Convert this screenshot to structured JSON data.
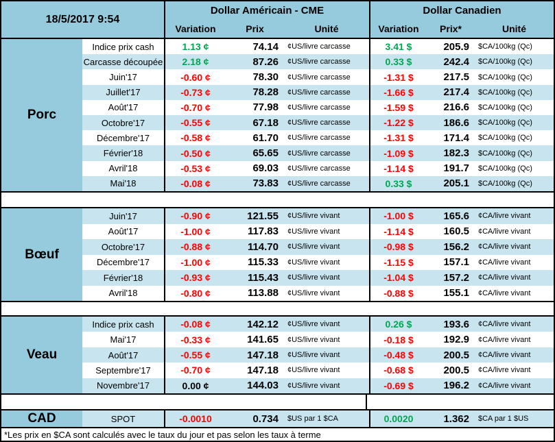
{
  "header": {
    "datetime": "18/5/2017 9:54",
    "usd_group": {
      "title": "Dollar Américain - CME",
      "cols": [
        "Variation",
        "Prix",
        "Unité"
      ]
    },
    "cad_group": {
      "title": "Dollar Canadien",
      "cols": [
        "Variation",
        "Prix*",
        "Unité"
      ]
    }
  },
  "colors": {
    "header_blue": "#95cbdc",
    "stripe_blue": "#c7e4ef",
    "positive_green": "#00a651",
    "negative_red": "#ff0000",
    "neutral_black": "#000000"
  },
  "sections": [
    {
      "name": "Porc",
      "stripe_start": "white",
      "rows": [
        {
          "label": "Indice prix cash",
          "us_var": "1.13 ¢",
          "us_dir": "pos",
          "us_prix": "74.14",
          "us_unit": "¢US/livre carcasse",
          "ca_var": "3.41 $",
          "ca_dir": "pos",
          "ca_prix": "205.9",
          "ca_unit": "$CA/100kg (Qc)"
        },
        {
          "label": "Carcasse découpée",
          "us_var": "2.18 ¢",
          "us_dir": "pos",
          "us_prix": "87.26",
          "us_unit": "¢US/livre carcasse",
          "ca_var": "0.33 $",
          "ca_dir": "pos",
          "ca_prix": "242.4",
          "ca_unit": "$CA/100kg (Qc)"
        },
        {
          "label": "Juin'17",
          "us_var": "-0.60 ¢",
          "us_dir": "neg",
          "us_prix": "78.30",
          "us_unit": "¢US/livre carcasse",
          "ca_var": "-1.31 $",
          "ca_dir": "neg",
          "ca_prix": "217.5",
          "ca_unit": "$CA/100kg (Qc)"
        },
        {
          "label": "Juillet'17",
          "us_var": "-0.73 ¢",
          "us_dir": "neg",
          "us_prix": "78.28",
          "us_unit": "¢US/livre carcasse",
          "ca_var": "-1.66 $",
          "ca_dir": "neg",
          "ca_prix": "217.4",
          "ca_unit": "$CA/100kg (Qc)"
        },
        {
          "label": "Août'17",
          "us_var": "-0.70 ¢",
          "us_dir": "neg",
          "us_prix": "77.98",
          "us_unit": "¢US/livre carcasse",
          "ca_var": "-1.59 $",
          "ca_dir": "neg",
          "ca_prix": "216.6",
          "ca_unit": "$CA/100kg (Qc)"
        },
        {
          "label": "Octobre'17",
          "us_var": "-0.55 ¢",
          "us_dir": "neg",
          "us_prix": "67.18",
          "us_unit": "¢US/livre carcasse",
          "ca_var": "-1.22 $",
          "ca_dir": "neg",
          "ca_prix": "186.6",
          "ca_unit": "$CA/100kg (Qc)"
        },
        {
          "label": "Décembre'17",
          "us_var": "-0.58 ¢",
          "us_dir": "neg",
          "us_prix": "61.70",
          "us_unit": "¢US/livre carcasse",
          "ca_var": "-1.31 $",
          "ca_dir": "neg",
          "ca_prix": "171.4",
          "ca_unit": "$CA/100kg (Qc)"
        },
        {
          "label": "Février'18",
          "us_var": "-0.50 ¢",
          "us_dir": "neg",
          "us_prix": "65.65",
          "us_unit": "¢US/livre carcasse",
          "ca_var": "-1.09 $",
          "ca_dir": "neg",
          "ca_prix": "182.3",
          "ca_unit": "$CA/100kg (Qc)"
        },
        {
          "label": "Avril'18",
          "us_var": "-0.53 ¢",
          "us_dir": "neg",
          "us_prix": "69.03",
          "us_unit": "¢US/livre carcasse",
          "ca_var": "-1.14 $",
          "ca_dir": "neg",
          "ca_prix": "191.7",
          "ca_unit": "$CA/100kg (Qc)"
        },
        {
          "label": "Mai'18",
          "us_var": "-0.08 ¢",
          "us_dir": "neg",
          "us_prix": "73.83",
          "us_unit": "¢US/livre carcasse",
          "ca_var": "0.33 $",
          "ca_dir": "pos",
          "ca_prix": "205.1",
          "ca_unit": "$CA/100kg (Qc)"
        }
      ]
    },
    {
      "name": "Bœuf",
      "stripe_start": "blue",
      "rows": [
        {
          "label": "Juin'17",
          "us_var": "-0.90 ¢",
          "us_dir": "neg",
          "us_prix": "121.55",
          "us_unit": "¢US/livre vivant",
          "ca_var": "-1.00 $",
          "ca_dir": "neg",
          "ca_prix": "165.6",
          "ca_unit": "¢CA/livre vivant"
        },
        {
          "label": "Août'17",
          "us_var": "-1.00 ¢",
          "us_dir": "neg",
          "us_prix": "117.83",
          "us_unit": "¢US/livre vivant",
          "ca_var": "-1.14 $",
          "ca_dir": "neg",
          "ca_prix": "160.5",
          "ca_unit": "¢CA/livre vivant"
        },
        {
          "label": "Octobre'17",
          "us_var": "-0.88 ¢",
          "us_dir": "neg",
          "us_prix": "114.70",
          "us_unit": "¢US/livre vivant",
          "ca_var": "-0.98 $",
          "ca_dir": "neg",
          "ca_prix": "156.2",
          "ca_unit": "¢CA/livre vivant"
        },
        {
          "label": "Décembre'17",
          "us_var": "-1.00 ¢",
          "us_dir": "neg",
          "us_prix": "115.33",
          "us_unit": "¢US/livre vivant",
          "ca_var": "-1.15 $",
          "ca_dir": "neg",
          "ca_prix": "157.1",
          "ca_unit": "¢CA/livre vivant"
        },
        {
          "label": "Février'18",
          "us_var": "-0.93 ¢",
          "us_dir": "neg",
          "us_prix": "115.43",
          "us_unit": "¢US/livre vivant",
          "ca_var": "-1.04 $",
          "ca_dir": "neg",
          "ca_prix": "157.2",
          "ca_unit": "¢CA/livre vivant"
        },
        {
          "label": "Avril'18",
          "us_var": "-0.80 ¢",
          "us_dir": "neg",
          "us_prix": "113.88",
          "us_unit": "¢US/livre vivant",
          "ca_var": "-0.88 $",
          "ca_dir": "neg",
          "ca_prix": "155.1",
          "ca_unit": "¢CA/livre vivant"
        }
      ]
    },
    {
      "name": "Veau",
      "stripe_start": "blue",
      "rows": [
        {
          "label": "Indice prix cash",
          "us_var": "-0.08 ¢",
          "us_dir": "neg",
          "us_prix": "142.12",
          "us_unit": "¢US/livre vivant",
          "ca_var": "0.26 $",
          "ca_dir": "pos",
          "ca_prix": "193.6",
          "ca_unit": "¢CA/livre vivant"
        },
        {
          "label": "Mai'17",
          "us_var": "-0.33 ¢",
          "us_dir": "neg",
          "us_prix": "141.65",
          "us_unit": "¢US/livre vivant",
          "ca_var": "-0.18 $",
          "ca_dir": "neg",
          "ca_prix": "192.9",
          "ca_unit": "¢CA/livre vivant"
        },
        {
          "label": "Août'17",
          "us_var": "-0.55 ¢",
          "us_dir": "neg",
          "us_prix": "147.18",
          "us_unit": "¢US/livre vivant",
          "ca_var": "-0.48 $",
          "ca_dir": "neg",
          "ca_prix": "200.5",
          "ca_unit": "¢CA/livre vivant"
        },
        {
          "label": "Septembre'17",
          "us_var": "-0.70 ¢",
          "us_dir": "neg",
          "us_prix": "147.18",
          "us_unit": "¢US/livre vivant",
          "ca_var": "-0.68 $",
          "ca_dir": "neg",
          "ca_prix": "200.5",
          "ca_unit": "¢CA/livre vivant"
        },
        {
          "label": "Novembre'17",
          "us_var": "0.00 ¢",
          "us_dir": "zero",
          "us_prix": "144.03",
          "us_unit": "¢US/livre vivant",
          "ca_var": "-0.69 $",
          "ca_dir": "neg",
          "ca_prix": "196.2",
          "ca_unit": "¢CA/livre vivant"
        }
      ]
    },
    {
      "name": "CAD",
      "stripe_start": "blue",
      "rows": [
        {
          "label": "SPOT",
          "us_var": "-0.0010",
          "us_dir": "neg",
          "us_prix": "0.734",
          "us_unit": "$US par 1 $CA",
          "ca_var": "0.0020",
          "ca_dir": "pos",
          "ca_prix": "1.362",
          "ca_unit": "$CA par 1 $US"
        }
      ]
    }
  ],
  "footnote": "*Les prix en $CA sont calculés avec le taux du jour et pas selon les taux à terme"
}
